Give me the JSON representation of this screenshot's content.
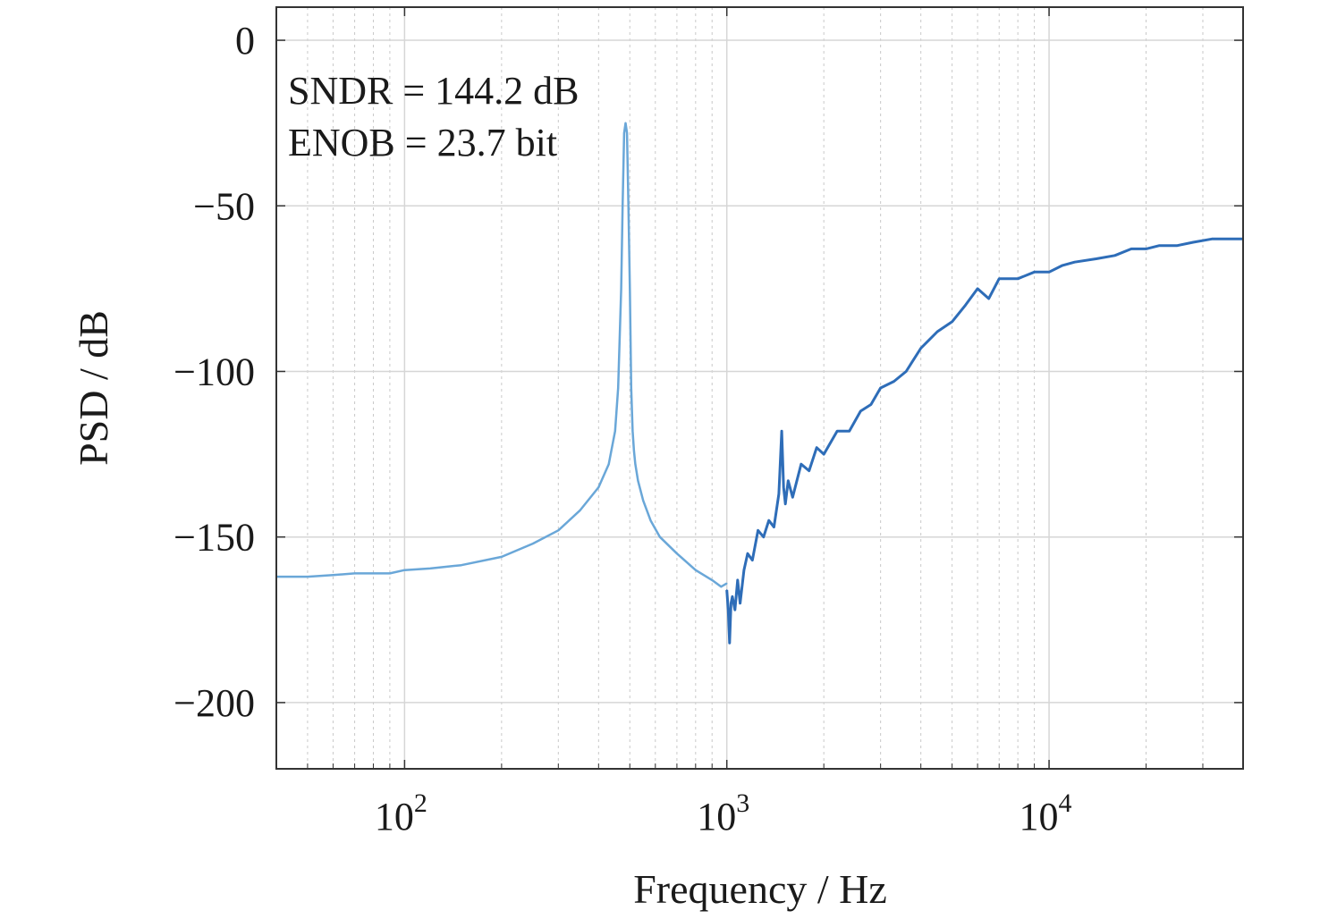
{
  "chart_data": {
    "type": "line",
    "title": "",
    "xlabel": "Frequency / Hz",
    "ylabel": "PSD / dB",
    "xscale": "log",
    "xlim": [
      40,
      40000
    ],
    "ylim": [
      -220,
      10
    ],
    "grid": true,
    "legend": "none",
    "x_ticks": [
      {
        "value": 100,
        "base": "10",
        "exp": "2"
      },
      {
        "value": 1000,
        "base": "10",
        "exp": "3"
      },
      {
        "value": 10000,
        "base": "10",
        "exp": "4"
      }
    ],
    "y_ticks": [
      {
        "value": 0,
        "label": "0"
      },
      {
        "value": -50,
        "label": "−50"
      },
      {
        "value": -100,
        "label": "−100"
      },
      {
        "value": -150,
        "label": "−150"
      },
      {
        "value": -200,
        "label": "−200"
      }
    ],
    "annotations": [
      "SNDR = 144.2 dB",
      "ENOB = 23.7 bit"
    ],
    "colors": {
      "light": "#6aa7d8",
      "dark": "#2e6db8"
    },
    "series": [
      {
        "color": "#6aa7d8",
        "x": [
          40,
          50,
          60,
          70,
          80,
          90,
          100,
          120,
          150,
          200,
          250,
          300,
          350,
          400,
          430,
          450,
          460,
          470,
          475,
          480,
          485,
          490,
          495,
          500,
          505,
          510,
          515,
          520,
          530,
          550,
          580,
          620,
          700,
          800,
          900,
          960,
          1000
        ],
        "y": [
          -162,
          -162,
          -161.5,
          -161,
          -161,
          -161,
          -160,
          -159.5,
          -158.5,
          -156,
          -152,
          -148,
          -142,
          -135,
          -128,
          -118,
          -105,
          -75,
          -50,
          -28,
          -25,
          -28,
          -50,
          -75,
          -105,
          -118,
          -124,
          -128,
          -133,
          -139,
          -145,
          -150,
          -155,
          -160,
          -163,
          -165,
          -164
        ]
      },
      {
        "color": "#2e6db8",
        "x": [
          1000,
          1010,
          1020,
          1030,
          1040,
          1060,
          1080,
          1100,
          1130,
          1160,
          1200,
          1250,
          1300,
          1350,
          1400,
          1450,
          1480,
          1500,
          1520,
          1550,
          1600,
          1700,
          1800,
          1900,
          2000,
          2200,
          2400,
          2600,
          2800,
          3000,
          3300,
          3600,
          4000,
          4500,
          5000,
          5500,
          6000,
          6500,
          7000,
          8000,
          9000,
          10000,
          11000,
          12000,
          14000,
          16000,
          18000,
          20000,
          22000,
          25000,
          28000,
          32000,
          36000,
          40000
        ],
        "y": [
          -166,
          -172,
          -182,
          -170,
          -168,
          -172,
          -163,
          -170,
          -160,
          -155,
          -157,
          -148,
          -150,
          -145,
          -147,
          -137,
          -118,
          -135,
          -140,
          -133,
          -138,
          -128,
          -130,
          -123,
          -125,
          -118,
          -118,
          -112,
          -110,
          -105,
          -103,
          -100,
          -93,
          -88,
          -85,
          -80,
          -75,
          -78,
          -72,
          -72,
          -70,
          -70,
          -68,
          -67,
          -66,
          -65,
          -63,
          -63,
          -62,
          -62,
          -61,
          -60,
          -60,
          -60
        ]
      }
    ]
  }
}
